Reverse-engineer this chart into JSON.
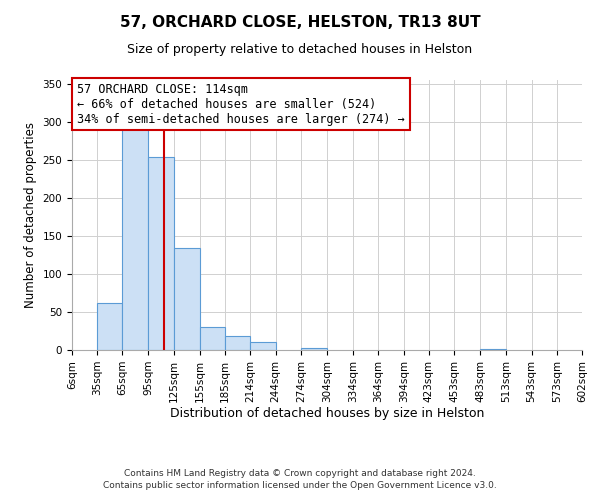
{
  "title": "57, ORCHARD CLOSE, HELSTON, TR13 8UT",
  "subtitle": "Size of property relative to detached houses in Helston",
  "xlabel": "Distribution of detached houses by size in Helston",
  "ylabel": "Number of detached properties",
  "bin_edges": [
    6,
    35,
    65,
    95,
    125,
    155,
    185,
    214,
    244,
    274,
    304,
    334,
    364,
    394,
    423,
    453,
    483,
    513,
    543,
    573,
    602
  ],
  "bin_labels": [
    "6sqm",
    "35sqm",
    "65sqm",
    "95sqm",
    "125sqm",
    "155sqm",
    "185sqm",
    "214sqm",
    "244sqm",
    "274sqm",
    "304sqm",
    "334sqm",
    "364sqm",
    "394sqm",
    "423sqm",
    "453sqm",
    "483sqm",
    "513sqm",
    "543sqm",
    "573sqm",
    "602sqm"
  ],
  "counts": [
    0,
    62,
    291,
    254,
    134,
    30,
    18,
    11,
    0,
    3,
    0,
    0,
    0,
    0,
    0,
    0,
    1,
    0,
    0,
    0
  ],
  "bar_color": "#cce0f5",
  "bar_edge_color": "#5b9bd5",
  "vline_x": 114,
  "vline_color": "#cc0000",
  "annotation_line1": "57 ORCHARD CLOSE: 114sqm",
  "annotation_line2": "← 66% of detached houses are smaller (524)",
  "annotation_line3": "34% of semi-detached houses are larger (274) →",
  "annotation_box_color": "white",
  "annotation_box_edge": "#cc0000",
  "ylim": [
    0,
    355
  ],
  "yticks": [
    0,
    50,
    100,
    150,
    200,
    250,
    300,
    350
  ],
  "footer1": "Contains HM Land Registry data © Crown copyright and database right 2024.",
  "footer2": "Contains public sector information licensed under the Open Government Licence v3.0.",
  "bg_color": "white",
  "grid_color": "#d0d0d0",
  "title_fontsize": 11,
  "subtitle_fontsize": 9,
  "ylabel_fontsize": 8.5,
  "xlabel_fontsize": 9,
  "tick_fontsize": 7.5,
  "annotation_fontsize": 8.5,
  "footer_fontsize": 6.5
}
